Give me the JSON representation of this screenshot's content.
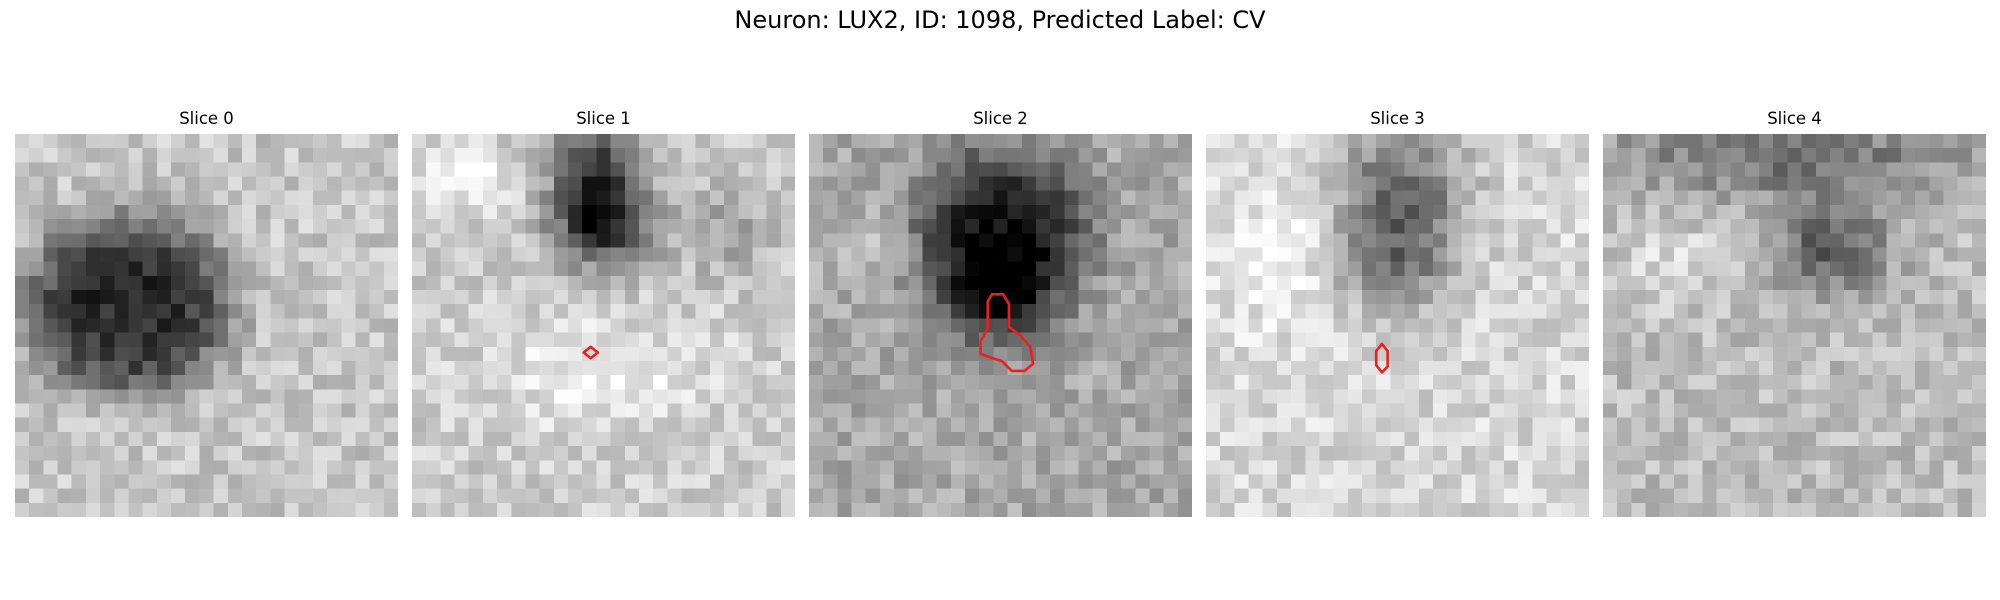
{
  "figure": {
    "title": "Neuron: LUX2, ID: 1098, Predicted Label: CV"
  },
  "contour_color": "#e8201f",
  "grid_size": 27,
  "slices": [
    {
      "title": "Slice 0",
      "contours": []
    },
    {
      "title": "Slice 1",
      "contours": [
        [
          [
            12.6,
            15.0
          ],
          [
            13.1,
            15.4
          ],
          [
            12.6,
            15.8
          ],
          [
            12.1,
            15.4
          ]
        ]
      ]
    },
    {
      "title": "Slice 2",
      "contours": [
        [
          [
            12.9,
            11.3
          ],
          [
            13.7,
            11.3
          ],
          [
            14.1,
            12.0
          ],
          [
            14.1,
            13.6
          ],
          [
            14.9,
            14.2
          ],
          [
            15.6,
            15.0
          ],
          [
            15.8,
            16.2
          ],
          [
            15.2,
            16.7
          ],
          [
            14.3,
            16.7
          ],
          [
            13.6,
            16.0
          ],
          [
            12.9,
            15.8
          ],
          [
            12.1,
            15.5
          ],
          [
            12.1,
            14.6
          ],
          [
            12.6,
            13.7
          ],
          [
            12.6,
            11.8
          ]
        ]
      ]
    },
    {
      "title": "Slice 3",
      "contours": [
        [
          [
            12.4,
            14.8
          ],
          [
            12.8,
            15.3
          ],
          [
            12.8,
            16.4
          ],
          [
            12.4,
            16.8
          ],
          [
            12.0,
            16.3
          ],
          [
            12.0,
            15.3
          ]
        ]
      ]
    },
    {
      "title": "Slice 4",
      "contours": []
    }
  ]
}
